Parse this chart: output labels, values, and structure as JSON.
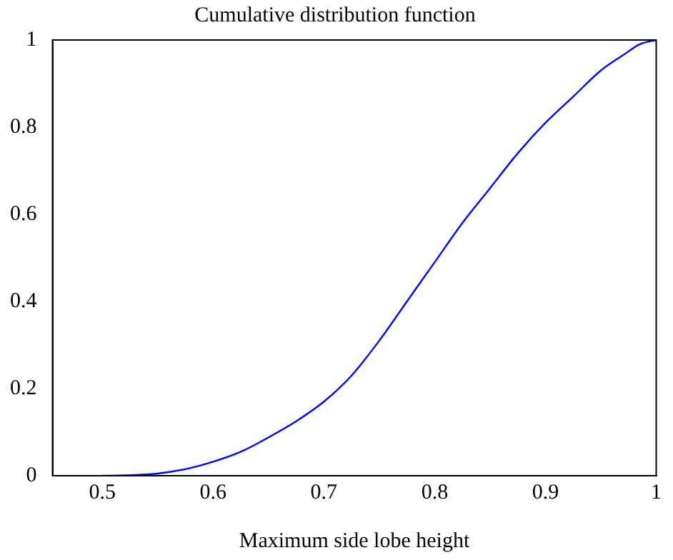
{
  "chart_data": {
    "type": "line",
    "title": "Cumulative distribution function",
    "xlabel": "Maximum side lobe height",
    "x": [
      0.5,
      0.52,
      0.55,
      0.575,
      0.6,
      0.625,
      0.65,
      0.675,
      0.7,
      0.725,
      0.75,
      0.775,
      0.8,
      0.825,
      0.85,
      0.875,
      0.9,
      0.925,
      0.95,
      0.97,
      0.985,
      1.0
    ],
    "series": [
      {
        "color": "#0000ff",
        "values": [
          0,
          0.001,
          0.005,
          0.015,
          0.032,
          0.055,
          0.088,
          0.125,
          0.17,
          0.23,
          0.31,
          0.4,
          0.49,
          0.58,
          0.66,
          0.74,
          0.81,
          0.87,
          0.93,
          0.965,
          0.99,
          1.0
        ]
      }
    ],
    "xlim": [
      0.455,
      1
    ],
    "xticks": [
      0.5,
      0.6,
      0.7,
      0.8,
      0.9,
      1
    ],
    "ylim": [
      0,
      1
    ],
    "yticks": [
      0,
      0.2,
      0.4,
      0.6,
      0.8,
      1
    ],
    "grid": false,
    "legend": false,
    "marker": "none",
    "line_style": "solid"
  }
}
